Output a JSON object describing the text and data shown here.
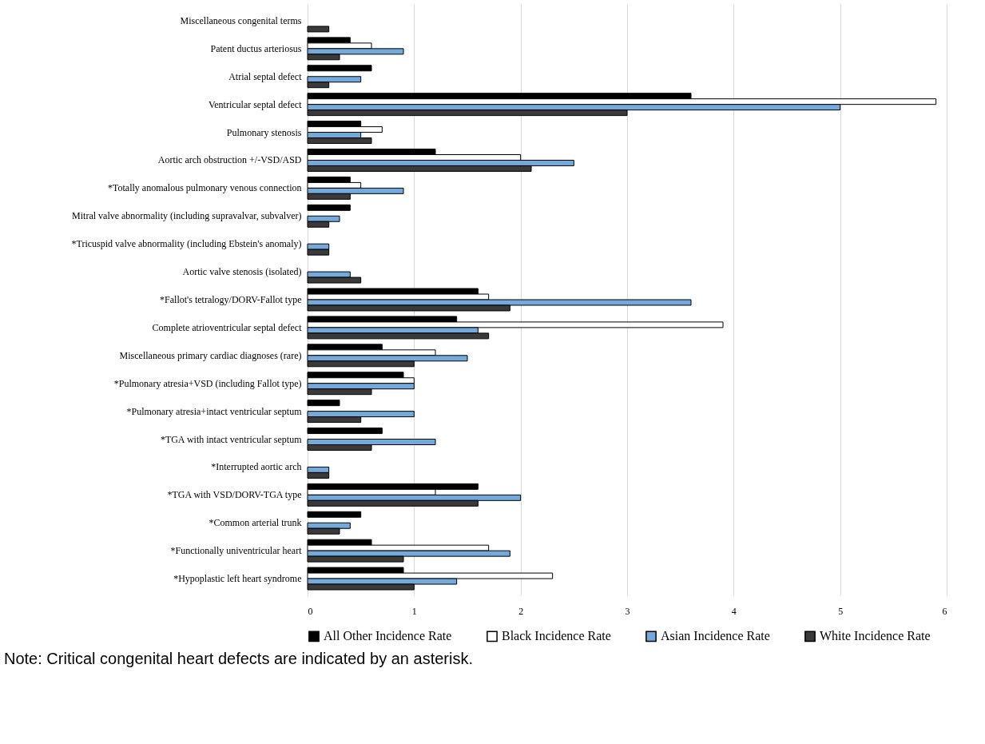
{
  "chart_data": {
    "type": "bar",
    "orientation": "horizontal",
    "categories": [
      "Miscellaneous congenital terms",
      "Patent ductus arteriosus",
      "Atrial septal defect",
      "Ventricular septal defect",
      "Pulmonary stenosis",
      "Aortic arch obstruction +/-VSD/ASD",
      "*Totally anomalous pulmonary venous connection",
      "Mitral valve abnormality (including supravalvar, subvalver)",
      "*Tricuspid valve abnormality (including Ebstein's anomaly)",
      "Aortic valve stenosis (isolated)",
      "*Fallot's tetralogy/DORV-Fallot type",
      "Complete atrioventricular septal defect",
      "Miscellaneous primary cardiac diagnoses (rare)",
      "*Pulmonary atresia+VSD (including Fallot type)",
      "*Pulmonary atresia+intact ventricular septum",
      "*TGA with intact ventricular septum",
      "*Interrupted aortic arch",
      "*TGA with VSD/DORV-TGA type",
      "*Common arterial trunk",
      "*Functionally univentricular heart",
      "*Hypoplastic left heart syndrome"
    ],
    "series": [
      {
        "name": "All Other Incidence Rate",
        "color": "#000000",
        "values": [
          null,
          0.4,
          0.6,
          3.6,
          0.5,
          1.2,
          0.4,
          0.4,
          null,
          null,
          1.6,
          1.4,
          0.7,
          0.9,
          0.3,
          0.7,
          null,
          1.6,
          0.5,
          0.6,
          0.9
        ]
      },
      {
        "name": "Black Incidence Rate",
        "color": "#ffffff",
        "values": [
          null,
          0.6,
          null,
          5.9,
          0.7,
          2.0,
          0.5,
          null,
          null,
          null,
          1.7,
          3.9,
          1.2,
          1.0,
          null,
          null,
          null,
          1.2,
          null,
          1.7,
          2.3
        ]
      },
      {
        "name": "Asian Incidence Rate",
        "color": "#74a9dc",
        "values": [
          null,
          0.9,
          0.5,
          5.0,
          0.5,
          2.5,
          0.9,
          0.3,
          0.2,
          0.4,
          3.6,
          1.6,
          1.5,
          1.0,
          1.0,
          1.2,
          0.2,
          2.0,
          0.4,
          1.9,
          1.4
        ]
      },
      {
        "name": "White Incidence Rate",
        "color": "#3a3a3a",
        "values": [
          0.2,
          0.3,
          0.2,
          3.0,
          0.6,
          2.1,
          0.4,
          0.2,
          0.2,
          0.5,
          1.9,
          1.7,
          1.0,
          0.6,
          0.5,
          0.6,
          0.2,
          1.6,
          0.3,
          0.9,
          1.0
        ]
      }
    ],
    "xlim": [
      0,
      6
    ],
    "xticks": [
      0,
      1,
      2,
      3,
      4,
      5,
      6
    ],
    "grid": "x",
    "legend": "bottom",
    "annotations": [
      "Note: Critical congenital heart defects are indicated by an asterisk."
    ]
  }
}
